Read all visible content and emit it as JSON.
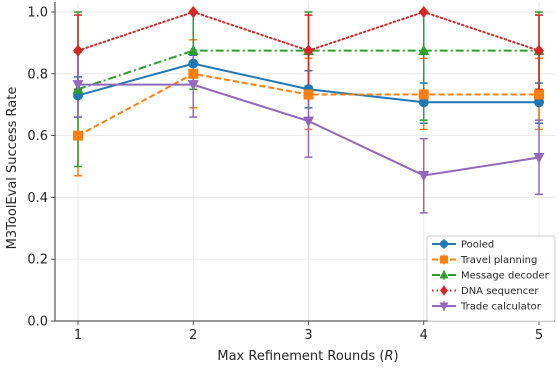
{
  "chart_data": {
    "type": "line",
    "xlabel": "Max Refinement Rounds (R)",
    "xlabel_prefix": "Max Refinement Rounds (",
    "xlabel_var": "R",
    "xlabel_suffix": ")",
    "ylabel": "M3ToolEval Success Rate",
    "x": [
      1,
      2,
      3,
      4,
      5
    ],
    "xticks": [
      "1",
      "2",
      "3",
      "4",
      "5"
    ],
    "ylim": [
      0,
      1.0
    ],
    "yticks": [
      "0.0",
      "0.2",
      "0.4",
      "0.6",
      "0.8",
      "1.0"
    ],
    "grid": true,
    "legend_position": "lower-right",
    "series": [
      {
        "name": "Pooled",
        "color": "#1f77b4",
        "linestyle": "solid",
        "marker": "circle",
        "values": [
          0.73,
          0.833,
          0.75,
          0.708,
          0.708
        ],
        "err_low": [
          0.66,
          0.81,
          0.69,
          0.64,
          0.64
        ],
        "err_high": [
          0.79,
          0.86,
          0.81,
          0.77,
          0.77
        ]
      },
      {
        "name": "Travel planning",
        "color": "#ff7f0e",
        "linestyle": "dashed",
        "marker": "square",
        "values": [
          0.6,
          0.8,
          0.733,
          0.733,
          0.733
        ],
        "err_low": [
          0.47,
          0.69,
          0.62,
          0.62,
          0.62
        ],
        "err_high": [
          0.73,
          0.91,
          0.85,
          0.85,
          0.85
        ]
      },
      {
        "name": "Message decoder",
        "color": "#2ca02c",
        "linestyle": "dashdot",
        "marker": "triangle-up",
        "values": [
          0.75,
          0.875,
          0.875,
          0.875,
          0.875
        ],
        "err_low": [
          0.5,
          0.75,
          0.75,
          0.65,
          0.75
        ],
        "err_high": [
          1.0,
          1.0,
          1.0,
          1.0,
          1.0
        ]
      },
      {
        "name": "DNA sequencer",
        "color": "#d62728",
        "linestyle": "dotted",
        "marker": "diamond",
        "values": [
          0.875,
          1.0,
          0.875,
          1.0,
          0.875
        ],
        "err_low": [
          0.75,
          1.0,
          0.75,
          1.0,
          0.75
        ],
        "err_high": [
          0.99,
          1.0,
          0.99,
          1.0,
          0.99
        ]
      },
      {
        "name": "Trade calculator",
        "color": "#9467bd",
        "linestyle": "solid",
        "marker": "triangle-down",
        "values": [
          0.765,
          0.765,
          0.647,
          0.471,
          0.529
        ],
        "err_low": [
          0.66,
          0.66,
          0.53,
          0.35,
          0.41
        ],
        "err_high": [
          0.87,
          0.87,
          0.76,
          0.59,
          0.65
        ]
      }
    ]
  }
}
